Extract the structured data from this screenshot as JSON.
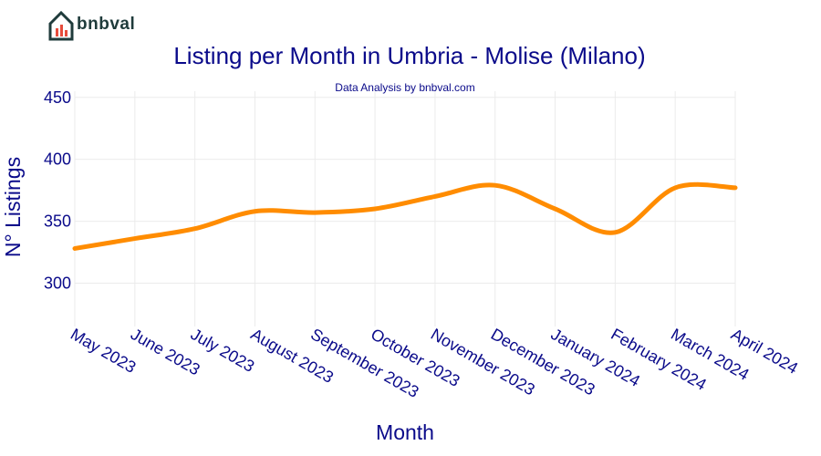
{
  "brand": {
    "logo_text": "bnbval",
    "accent": "#e74c3c",
    "dark": "#1f3b3b"
  },
  "chart_data": {
    "type": "line",
    "title": "Listing per Month in Umbria - Molise (Milano)",
    "subtitle": "Data Analysis by bnbval.com",
    "xlabel": "Month",
    "ylabel": "N° Listings",
    "categories": [
      "May 2023",
      "June 2023",
      "July 2023",
      "August 2023",
      "September 2023",
      "October 2023",
      "November 2023",
      "December 2023",
      "January 2024",
      "February 2024",
      "March 2024",
      "April 2024"
    ],
    "series": [
      {
        "values": [
          328,
          336,
          344,
          358,
          357,
          360,
          370,
          379,
          360,
          341,
          377,
          377
        ],
        "color": "#ff8c00"
      }
    ],
    "ylim": [
      265,
      455
    ],
    "yticks": [
      300,
      350,
      400,
      450
    ],
    "grid": true,
    "legend": "none"
  }
}
